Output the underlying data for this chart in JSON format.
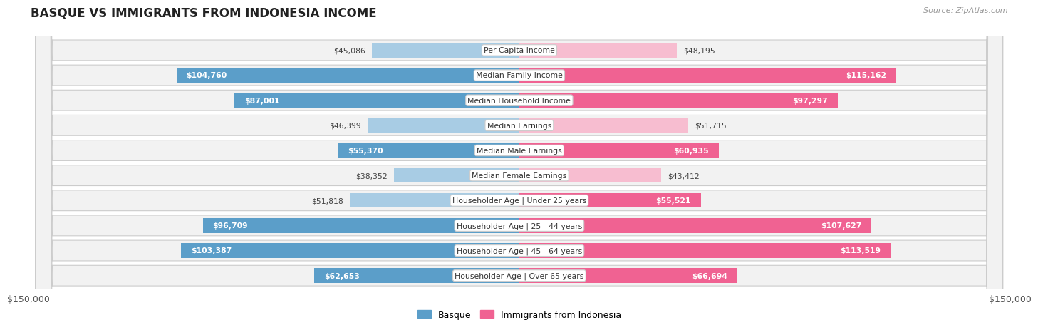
{
  "title": "BASQUE VS IMMIGRANTS FROM INDONESIA INCOME",
  "source": "Source: ZipAtlas.com",
  "categories": [
    "Per Capita Income",
    "Median Family Income",
    "Median Household Income",
    "Median Earnings",
    "Median Male Earnings",
    "Median Female Earnings",
    "Householder Age | Under 25 years",
    "Householder Age | 25 - 44 years",
    "Householder Age | 45 - 64 years",
    "Householder Age | Over 65 years"
  ],
  "basque_values": [
    45086,
    104760,
    87001,
    46399,
    55370,
    38352,
    51818,
    96709,
    103387,
    62653
  ],
  "indonesia_values": [
    48195,
    115162,
    97297,
    51715,
    60935,
    43412,
    55521,
    107627,
    113519,
    66694
  ],
  "basque_labels": [
    "$45,086",
    "$104,760",
    "$87,001",
    "$46,399",
    "$55,370",
    "$38,352",
    "$51,818",
    "$96,709",
    "$103,387",
    "$62,653"
  ],
  "indonesia_labels": [
    "$48,195",
    "$115,162",
    "$97,297",
    "$51,715",
    "$60,935",
    "$43,412",
    "$55,521",
    "$107,627",
    "$113,519",
    "$66,694"
  ],
  "basque_color_light": "#a8cce4",
  "basque_color_dark": "#5b9ec9",
  "indonesia_color_light": "#f7bdd0",
  "indonesia_color_dark": "#f06292",
  "max_value": 150000,
  "bar_height": 0.58,
  "row_bg_color": "#f2f2f2",
  "label_bg_color": "#ffffff",
  "legend_basque": "Basque",
  "legend_indonesia": "Immigrants from Indonesia",
  "inside_threshold": 55000,
  "x_tick_labels": [
    "$150,000",
    "$150,000"
  ]
}
